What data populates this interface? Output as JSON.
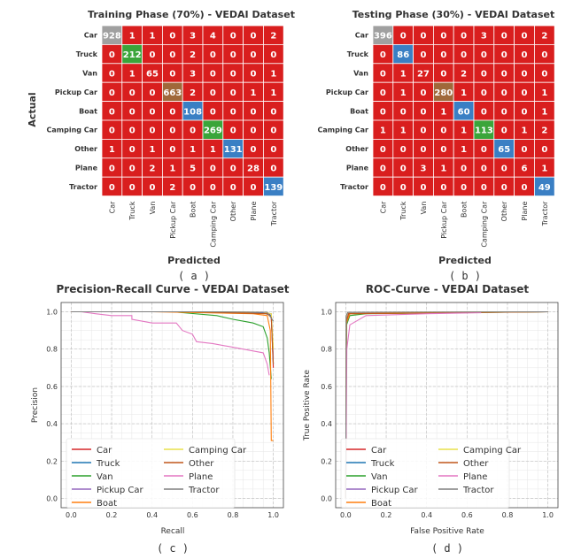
{
  "colors": {
    "background": "#ffffff",
    "cm_default": "#d91e1e",
    "cm_diag_a": [
      "#a0a0a0",
      "#3aa53a",
      "#d91e1e",
      "#a0683a",
      "#3a7fc4",
      "#3aa53a",
      "#3a7fc4",
      "#d91e1e",
      "#3a7fc4"
    ],
    "cm_diag_b": [
      "#a0a0a0",
      "#3a7fc4",
      "#d91e1e",
      "#a0683a",
      "#3a7fc4",
      "#3aa53a",
      "#3a7fc4",
      "#d91e1e",
      "#3a7fc4"
    ],
    "series": [
      "#d62728",
      "#1f77b4",
      "#2ca02c",
      "#9467bd",
      "#ff7f0e",
      "#e8e04a",
      "#c0571a",
      "#e377c2",
      "#7f7f7f"
    ],
    "grid": "#c8c8c8",
    "text": "#333333"
  },
  "chart_data": [
    {
      "id": "a",
      "type": "heatmap",
      "title": "Training Phase (70%) - VEDAI Dataset",
      "xlabel": "Predicted",
      "ylabel": "Actual",
      "caption": "( a )",
      "rows": [
        "Car",
        "Truck",
        "Van",
        "Pickup Car",
        "Boat",
        "Camping Car",
        "Other",
        "Plane",
        "Tractor"
      ],
      "cols": [
        "Car",
        "Truck",
        "Van",
        "Pickup Car",
        "Boat",
        "Camping Car",
        "Other",
        "Plane",
        "Tractor"
      ],
      "values": [
        [
          928,
          1,
          1,
          0,
          3,
          4,
          0,
          0,
          2
        ],
        [
          0,
          212,
          0,
          0,
          2,
          0,
          0,
          0,
          0
        ],
        [
          0,
          1,
          65,
          0,
          3,
          0,
          0,
          0,
          1
        ],
        [
          0,
          0,
          0,
          663,
          2,
          0,
          0,
          1,
          1
        ],
        [
          0,
          0,
          0,
          0,
          108,
          0,
          0,
          0,
          0
        ],
        [
          0,
          0,
          0,
          0,
          0,
          269,
          0,
          0,
          0
        ],
        [
          1,
          0,
          1,
          0,
          1,
          1,
          131,
          0,
          0
        ],
        [
          0,
          0,
          2,
          1,
          5,
          0,
          0,
          28,
          0
        ],
        [
          0,
          0,
          0,
          2,
          0,
          0,
          0,
          0,
          139
        ]
      ]
    },
    {
      "id": "b",
      "type": "heatmap",
      "title": "Testing Phase (30%) - VEDAI Dataset",
      "xlabel": "Predicted",
      "ylabel": "",
      "caption": "( b )",
      "rows": [
        "Car",
        "Truck",
        "Van",
        "Pickup Car",
        "Boat",
        "Camping Car",
        "Other",
        "Plane",
        "Tractor"
      ],
      "cols": [
        "Car",
        "Truck",
        "Van",
        "Pickup Car",
        "Boat",
        "Camping Car",
        "Other",
        "Plane",
        "Tractor"
      ],
      "values": [
        [
          396,
          0,
          0,
          0,
          0,
          3,
          0,
          0,
          2
        ],
        [
          0,
          86,
          0,
          0,
          0,
          0,
          0,
          0,
          0
        ],
        [
          0,
          1,
          27,
          0,
          2,
          0,
          0,
          0,
          0
        ],
        [
          0,
          1,
          0,
          280,
          1,
          0,
          0,
          0,
          1
        ],
        [
          0,
          0,
          0,
          1,
          60,
          0,
          0,
          0,
          1
        ],
        [
          1,
          1,
          0,
          0,
          1,
          113,
          0,
          1,
          2
        ],
        [
          0,
          0,
          0,
          0,
          1,
          0,
          65,
          0,
          0
        ],
        [
          0,
          0,
          3,
          1,
          0,
          0,
          0,
          6,
          1
        ],
        [
          0,
          0,
          0,
          0,
          0,
          0,
          0,
          0,
          49
        ]
      ]
    },
    {
      "id": "c",
      "type": "line",
      "title": "Precision-Recall Curve - VEDAI Dataset",
      "xlabel": "Recall",
      "ylabel": "Precision",
      "caption": "( c )",
      "xlim": [
        -0.05,
        1.05
      ],
      "ylim": [
        -0.05,
        1.05
      ],
      "xticks": [
        "0.0",
        "0.2",
        "0.4",
        "0.6",
        "0.8",
        "1.0"
      ],
      "yticks": [
        "0.0",
        "0.2",
        "0.4",
        "0.6",
        "0.8",
        "1.0"
      ],
      "legend_position": "lower-left",
      "series": [
        {
          "name": "Car",
          "x": [
            0,
            0.5,
            0.9,
            0.98,
            0.99,
            1.0
          ],
          "y": [
            1.0,
            1.0,
            0.998,
            0.99,
            0.97,
            0.7
          ]
        },
        {
          "name": "Truck",
          "x": [
            0,
            0.6,
            0.95,
            0.99,
            1.0
          ],
          "y": [
            1.0,
            1.0,
            0.995,
            0.98,
            0.72
          ]
        },
        {
          "name": "Van",
          "x": [
            0,
            0.5,
            0.72,
            0.8,
            0.85,
            0.9,
            0.95,
            0.97,
            0.98,
            0.99
          ],
          "y": [
            1.0,
            1.0,
            0.98,
            0.96,
            0.95,
            0.94,
            0.92,
            0.86,
            0.78,
            0.64
          ]
        },
        {
          "name": "Pickup Car",
          "x": [
            0,
            0.6,
            0.95,
            0.99,
            1.0
          ],
          "y": [
            1.0,
            1.0,
            0.997,
            0.99,
            0.75
          ]
        },
        {
          "name": "Boat",
          "x": [
            0,
            0.4,
            0.9,
            0.97,
            0.985,
            0.99,
            1.0
          ],
          "y": [
            1.0,
            1.0,
            0.99,
            0.98,
            0.9,
            0.31,
            0.31
          ]
        },
        {
          "name": "Camping Car",
          "x": [
            0,
            0.6,
            0.95,
            0.99,
            1.0
          ],
          "y": [
            1.0,
            1.0,
            0.998,
            0.99,
            0.8
          ]
        },
        {
          "name": "Other",
          "x": [
            0,
            0.6,
            0.97,
            0.99,
            1.0
          ],
          "y": [
            1.0,
            1.0,
            0.99,
            0.97,
            0.72
          ]
        },
        {
          "name": "Plane",
          "x": [
            0,
            0.05,
            0.12,
            0.2,
            0.3,
            0.3,
            0.35,
            0.4,
            0.52,
            0.55,
            0.6,
            0.62,
            0.7,
            0.8,
            0.9,
            0.95,
            0.97,
            0.98
          ],
          "y": [
            1.0,
            1.0,
            0.99,
            0.98,
            0.98,
            0.96,
            0.95,
            0.94,
            0.94,
            0.9,
            0.88,
            0.84,
            0.83,
            0.81,
            0.79,
            0.78,
            0.72,
            0.66
          ]
        },
        {
          "name": "Tractor",
          "x": [
            0,
            0.6,
            0.97,
            1.0
          ],
          "y": [
            1.0,
            1.0,
            0.998,
            0.95
          ]
        }
      ]
    },
    {
      "id": "d",
      "type": "line",
      "title": "ROC-Curve - VEDAI Dataset",
      "xlabel": "False Positive Rate",
      "ylabel": "True Positive Rate",
      "caption": "( d )",
      "xlim": [
        -0.05,
        1.05
      ],
      "ylim": [
        -0.05,
        1.05
      ],
      "xticks": [
        "0.0",
        "0.2",
        "0.4",
        "0.6",
        "0.8",
        "1.0"
      ],
      "yticks": [
        "0.0",
        "0.2",
        "0.4",
        "0.6",
        "0.8",
        "1.0"
      ],
      "legend_position": "lower-right",
      "series": [
        {
          "name": "Car",
          "x": [
            0,
            0.003,
            0.01,
            0.05,
            1.0
          ],
          "y": [
            0,
            0.96,
            0.99,
            0.995,
            1.0
          ]
        },
        {
          "name": "Truck",
          "x": [
            0,
            0.002,
            0.01,
            1.0
          ],
          "y": [
            0,
            0.97,
            0.995,
            1.0
          ]
        },
        {
          "name": "Van",
          "x": [
            0,
            0.004,
            0.02,
            0.1,
            1.0
          ],
          "y": [
            0,
            0.93,
            0.98,
            0.99,
            1.0
          ]
        },
        {
          "name": "Pickup Car",
          "x": [
            0,
            0.003,
            0.01,
            1.0
          ],
          "y": [
            0,
            0.96,
            0.995,
            1.0
          ]
        },
        {
          "name": "Boat",
          "x": [
            0,
            0.003,
            0.02,
            1.0
          ],
          "y": [
            0,
            0.94,
            0.99,
            1.0
          ]
        },
        {
          "name": "Camping Car",
          "x": [
            0,
            0.002,
            0.01,
            1.0
          ],
          "y": [
            0,
            0.97,
            0.997,
            1.0
          ]
        },
        {
          "name": "Other",
          "x": [
            0,
            0.003,
            0.015,
            1.0
          ],
          "y": [
            0,
            0.95,
            0.99,
            1.0
          ]
        },
        {
          "name": "Plane",
          "x": [
            0,
            0.005,
            0.02,
            0.1,
            0.4,
            0.67
          ],
          "y": [
            0,
            0.8,
            0.93,
            0.98,
            0.99,
            0.995
          ]
        },
        {
          "name": "Tractor",
          "x": [
            0,
            0.002,
            0.01,
            1.0
          ],
          "y": [
            0,
            0.98,
            0.998,
            1.0
          ]
        }
      ]
    }
  ]
}
